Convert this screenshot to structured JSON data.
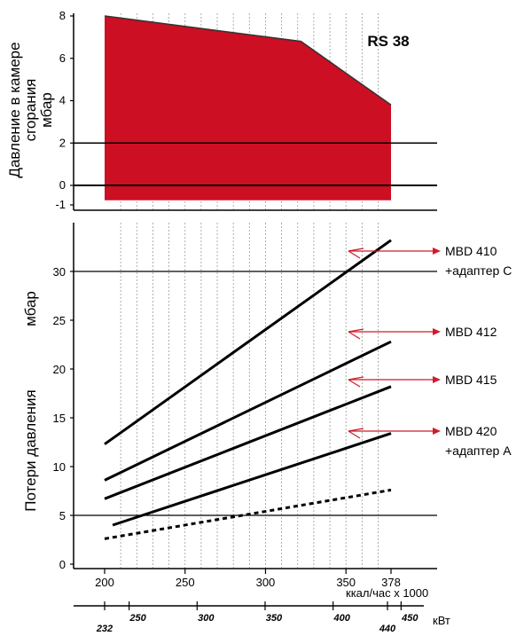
{
  "chart_data": [
    {
      "type": "area",
      "label": "RS 38",
      "ylabel_lines": [
        "Давление в камере",
        "сгорания",
        "мбар"
      ],
      "ylim": [
        -1,
        8
      ],
      "y_ticks": [
        -1,
        0,
        2,
        4,
        6,
        8
      ],
      "area_bottom": -0.7,
      "area_points": [
        {
          "x": 200,
          "y": 8.0
        },
        {
          "x": 322,
          "y": 6.8
        },
        {
          "x": 378,
          "y": 3.8
        }
      ],
      "fill_color": "#cc0f22",
      "ref_lines": [
        0,
        2
      ]
    },
    {
      "type": "line",
      "ylabel_lines": [
        "Потери давления",
        "мбар"
      ],
      "ylim": [
        0,
        35
      ],
      "y_ticks": [
        0,
        5,
        10,
        15,
        20,
        25,
        30
      ],
      "ref_lines": [
        5,
        30
      ],
      "series": [
        {
          "name": "MBD 410 +адаптер C",
          "label_lines": [
            "MBD 410",
            "+адаптер C"
          ],
          "points": [
            [
              200,
              12.3
            ],
            [
              378,
              33.2
            ]
          ]
        },
        {
          "name": "MBD 412",
          "label_lines": [
            "MBD 412"
          ],
          "points": [
            [
              200,
              8.6
            ],
            [
              378,
              22.8
            ]
          ]
        },
        {
          "name": "MBD 415",
          "label_lines": [
            "MBD 415"
          ],
          "points": [
            [
              200,
              6.7
            ],
            [
              378,
              18.2
            ]
          ]
        },
        {
          "name": "MBD 420 +адаптер A",
          "label_lines": [
            "MBD 420",
            "+адаптер A"
          ],
          "points": [
            [
              205,
              4.0
            ],
            [
              378,
              13.4
            ]
          ]
        },
        {
          "name": "",
          "label_lines": [],
          "points": [
            [
              200,
              2.6
            ],
            [
              378,
              7.6
            ]
          ],
          "dashed": true
        }
      ],
      "accent_color": "#d11a2a"
    }
  ],
  "x_axis_kcal": {
    "xlim": [
      200,
      378
    ],
    "tick_labels": [
      "200",
      "250",
      "300",
      "350",
      "378"
    ],
    "tick_values": [
      200,
      250,
      300,
      350,
      378
    ],
    "unit": "ккал/час x 1000"
  },
  "x_axis_kw": {
    "tick_labels": [
      "232",
      "250",
      "300",
      "350",
      "400",
      "440",
      "450"
    ],
    "tick_values": [
      232,
      250,
      300,
      350,
      400,
      440,
      450
    ],
    "unit": "кВт"
  }
}
